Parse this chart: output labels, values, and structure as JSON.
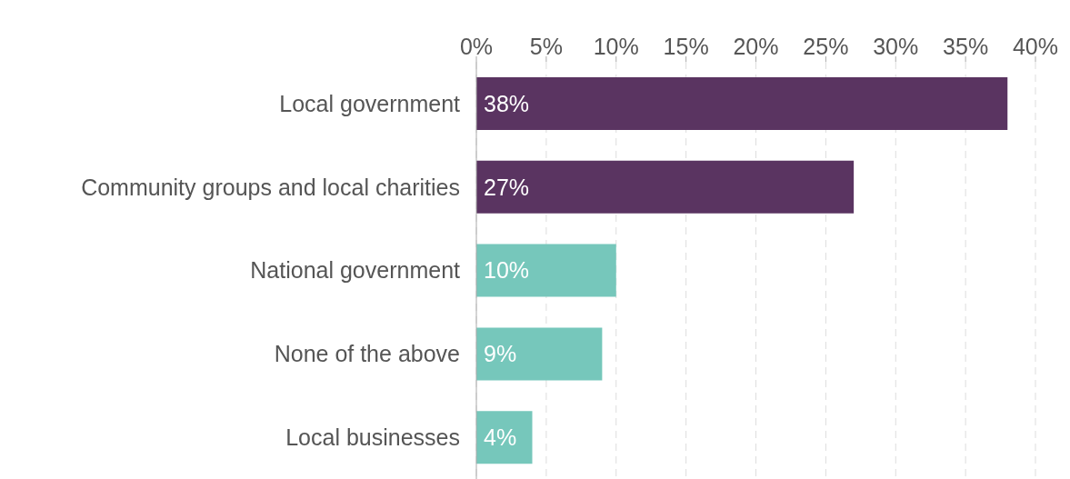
{
  "chart_data": {
    "type": "bar",
    "orientation": "horizontal",
    "categories": [
      "Local government",
      "Community groups and local charities",
      "National government",
      "None of the above",
      "Local businesses"
    ],
    "values": [
      38,
      27,
      10,
      9,
      4
    ],
    "colors": [
      "#5a3461",
      "#5a3461",
      "#76c7bb",
      "#76c7bb",
      "#76c7bb"
    ],
    "value_labels": [
      "38%",
      "27%",
      "10%",
      "9%",
      "4%"
    ],
    "xlim": [
      0,
      40
    ],
    "xticks": [
      {
        "value": 0,
        "label": "0%"
      },
      {
        "value": 5,
        "label": "5%"
      },
      {
        "value": 10,
        "label": "10%"
      },
      {
        "value": 15,
        "label": "15%"
      },
      {
        "value": 20,
        "label": "20%"
      },
      {
        "value": 25,
        "label": "25%"
      },
      {
        "value": 30,
        "label": "30%"
      },
      {
        "value": 35,
        "label": "35%"
      },
      {
        "value": 40,
        "label": "40%"
      }
    ],
    "grid": "x",
    "legend": false
  }
}
